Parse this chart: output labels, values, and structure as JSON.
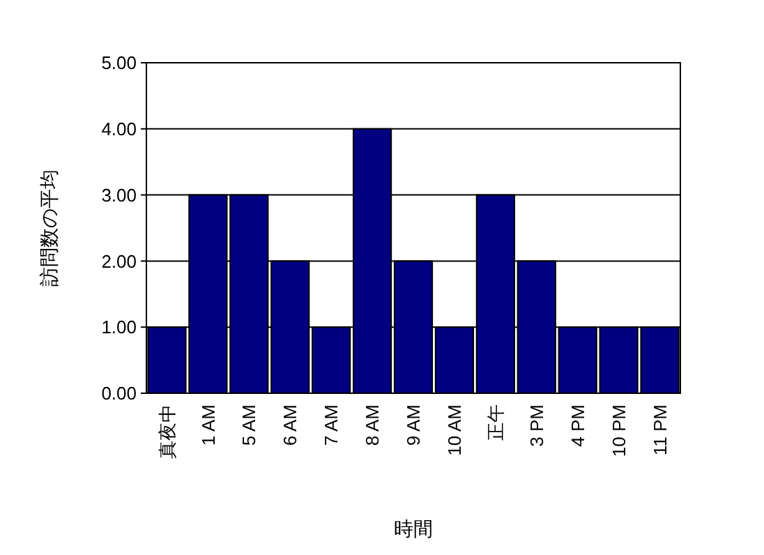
{
  "chart_data": {
    "type": "bar",
    "xlabel": "時間",
    "ylabel": "訪問数の平均",
    "categories": [
      "真夜中",
      "1 AM",
      "5 AM",
      "6 AM",
      "7 AM",
      "8 AM",
      "9 AM",
      "10 AM",
      "正午",
      "3 PM",
      "4 PM",
      "10 PM",
      "11 PM"
    ],
    "values": [
      1,
      3,
      3,
      2,
      1,
      4,
      2,
      1,
      3,
      2,
      1,
      1,
      1
    ],
    "color": "#000080",
    "ylim": [
      0,
      5
    ],
    "yticks": [
      {
        "value": 0,
        "label": "0.00"
      },
      {
        "value": 1,
        "label": "1.00"
      },
      {
        "value": 2,
        "label": "2.00"
      },
      {
        "value": 3,
        "label": "3.00"
      },
      {
        "value": 4,
        "label": "4.00"
      },
      {
        "value": 5,
        "label": "5.00"
      }
    ],
    "grid": "y"
  }
}
